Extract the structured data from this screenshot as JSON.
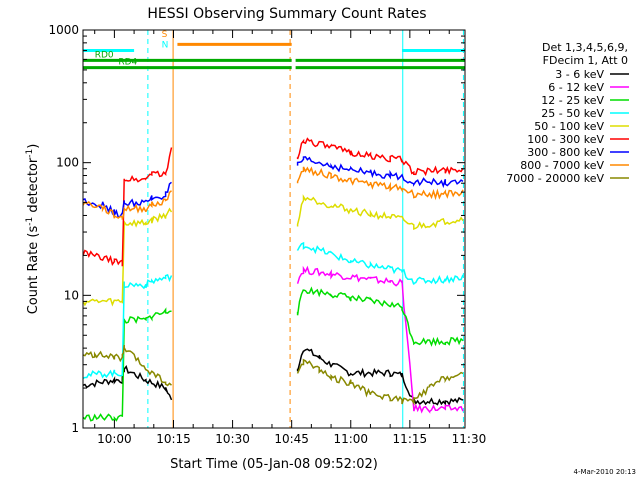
{
  "chart_data": {
    "type": "line",
    "title": "HESSI Observing Summary Count Rates",
    "xlabel": "Start Time (05-Jan-08 09:52:02)",
    "ylabel_parts": [
      "Count Rate (s",
      "-1",
      " detector",
      "-1",
      ")"
    ],
    "x_tick_labels": [
      "10:00",
      "10:15",
      "10:30",
      "10:45",
      "11:00",
      "11:15",
      "11:30"
    ],
    "x_ticks_min": [
      600,
      615,
      630,
      645,
      660,
      675,
      690
    ],
    "xlim_min": [
      592.03,
      689.0
    ],
    "yscale": "log",
    "ylim": [
      1,
      1000
    ],
    "y_tick_labels": [
      "1",
      "10",
      "100",
      "1000"
    ],
    "y_ticks": [
      1,
      10,
      100,
      1000
    ],
    "grid": false,
    "legend": {
      "placement": "right",
      "header": [
        "Det 1,3,4,5,6,9,",
        "FDecim 1, Att 0"
      ]
    },
    "series": [
      {
        "name": "3 - 6 keV",
        "color": "#000000",
        "x": [
          592,
          600,
          602,
          602.5,
          608,
          613,
          614.5,
          646.5,
          648,
          652,
          655,
          660,
          670,
          673,
          676,
          680,
          684,
          688.5
        ],
        "y": [
          2.1,
          2.3,
          2.3,
          2.8,
          2.3,
          2.0,
          1.6,
          2.8,
          4.0,
          3.4,
          3.0,
          2.6,
          2.6,
          2.5,
          1.6,
          1.6,
          1.6,
          1.6
        ]
      },
      {
        "name": "6 - 12 keV",
        "color": "#ff00ff",
        "x": [
          646.5,
          648,
          655,
          660,
          665,
          670,
          673,
          676,
          680,
          684,
          688.5
        ],
        "y": [
          13.0,
          15.5,
          14.5,
          13.8,
          13.2,
          12.7,
          12.4,
          1.4,
          1.4,
          1.4,
          1.4
        ]
      },
      {
        "name": "12 - 25 keV",
        "color": "#00dd00",
        "x": [
          592,
          600,
          602,
          602.5,
          608,
          609.5,
          613,
          614.5,
          646.5,
          648,
          655,
          660,
          665,
          670,
          673,
          676,
          684,
          688.5
        ],
        "y": [
          1.2,
          1.2,
          1.2,
          6.5,
          6.5,
          7.0,
          7.5,
          8.0,
          7.5,
          11.0,
          10.3,
          9.6,
          9.0,
          8.5,
          8.2,
          4.5,
          4.5,
          4.6
        ]
      },
      {
        "name": "25 - 50 keV",
        "color": "#00ffff",
        "x": [
          592,
          600,
          602,
          602.5,
          608,
          609.5,
          613,
          614.5,
          646.5,
          648,
          655,
          660,
          665,
          670,
          673,
          676,
          684,
          688.5
        ],
        "y": [
          2.5,
          2.6,
          2.6,
          12.0,
          12.0,
          12.8,
          13.5,
          14.0,
          22.0,
          24.0,
          20.5,
          18.0,
          16.8,
          15.8,
          15.2,
          12.8,
          13.2,
          13.8
        ]
      },
      {
        "name": "50 - 100 keV",
        "color": "#dddd00",
        "x": [
          592,
          600,
          602,
          602.5,
          608,
          609.5,
          613,
          614.5,
          646.5,
          648,
          655,
          660,
          665,
          670,
          673,
          676,
          684,
          688.5
        ],
        "y": [
          9.0,
          9.0,
          9.0,
          35.0,
          35.0,
          37.0,
          40.0,
          45.0,
          33.0,
          55.0,
          48.0,
          44.0,
          41.0,
          39.0,
          37.5,
          33.0,
          36.0,
          38.0
        ]
      },
      {
        "name": "100 - 300 keV",
        "color": "#ff0000",
        "x": [
          592,
          600,
          602,
          602.5,
          608,
          609.5,
          613,
          614.5,
          646.5,
          648,
          655,
          660,
          665,
          670,
          673,
          676,
          684,
          688.5
        ],
        "y": [
          21.0,
          18.0,
          17.5,
          75.0,
          75.0,
          85.0,
          80.0,
          130.0,
          110.0,
          150.0,
          130.0,
          120.0,
          112.0,
          108.0,
          105.0,
          85.0,
          88.0,
          90.0
        ]
      },
      {
        "name": "300 - 800 keV",
        "color": "#0000ff",
        "x": [
          592,
          597,
          600,
          602,
          602.5,
          608,
          609.5,
          613,
          614.5,
          646.5,
          648,
          655,
          660,
          665,
          670,
          673,
          676,
          684,
          688.5
        ],
        "y": [
          52.0,
          48.0,
          42.0,
          40.0,
          50.0,
          50.0,
          54.0,
          57.0,
          70.0,
          95.0,
          105.0,
          95.0,
          88.0,
          84.0,
          80.0,
          78.0,
          72.0,
          71.0,
          70.0
        ]
      },
      {
        "name": "800 - 7000 keV",
        "color": "#ff8800",
        "x": [
          592,
          597,
          600,
          602,
          602.5,
          608,
          609.5,
          613,
          614.5,
          646.5,
          648,
          655,
          660,
          665,
          670,
          673,
          676,
          684,
          688.5
        ],
        "y": [
          50.0,
          46.0,
          40.0,
          38.0,
          45.0,
          45.0,
          48.0,
          51.0,
          65.0,
          70.0,
          90.0,
          80.0,
          73.0,
          69.0,
          66.0,
          64.0,
          58.0,
          58.0,
          60.0
        ]
      },
      {
        "name": "7000 - 20000 keV",
        "color": "#888800",
        "x": [
          592,
          595,
          600,
          602,
          602.5,
          608,
          613,
          614.5,
          646.5,
          648,
          652,
          655,
          660,
          665,
          670,
          673,
          676,
          680,
          684,
          688.5
        ],
        "y": [
          3.5,
          3.6,
          3.4,
          3.4,
          4.0,
          2.8,
          2.2,
          2.0,
          2.6,
          3.2,
          2.8,
          2.4,
          2.2,
          1.8,
          1.7,
          1.6,
          1.6,
          2.0,
          2.4,
          2.5
        ]
      }
    ],
    "annotations": [
      {
        "label": "RD0",
        "color": "#00aa00"
      },
      {
        "label": "RD4",
        "color": "#00aa00"
      },
      {
        "label": "S",
        "color": "#ff8800"
      },
      {
        "label": "N",
        "color": "#00ffff"
      }
    ],
    "flag_bars": [
      {
        "kind": "cyan",
        "color": "#00ffff",
        "y": 700,
        "x_ranges": [
          [
            592,
            605
          ],
          [
            673,
            689
          ]
        ]
      },
      {
        "kind": "orange",
        "color": "#ff8800",
        "y": 780,
        "x_ranges": [
          [
            616,
            645
          ]
        ]
      },
      {
        "kind": "green",
        "color": "#00aa00",
        "y": 590,
        "x_ranges": [
          [
            592,
            645
          ],
          [
            646,
            689
          ]
        ]
      },
      {
        "kind": "green",
        "color": "#00aa00",
        "y": 520,
        "x_ranges": [
          [
            592,
            645
          ],
          [
            646,
            689
          ]
        ]
      }
    ],
    "event_lines": [
      {
        "x": 608.5,
        "color": "#00ffff",
        "style": "dashed"
      },
      {
        "x": 614.9,
        "color": "#ff8800",
        "style": "solid"
      },
      {
        "x": 644.6,
        "color": "#ff8800",
        "style": "dashed"
      },
      {
        "x": 673.2,
        "color": "#00ffff",
        "style": "solid"
      },
      {
        "x": 688.6,
        "color": "#00ffff",
        "style": "dashed"
      }
    ],
    "footer": "4-Mar-2010 20:13"
  }
}
